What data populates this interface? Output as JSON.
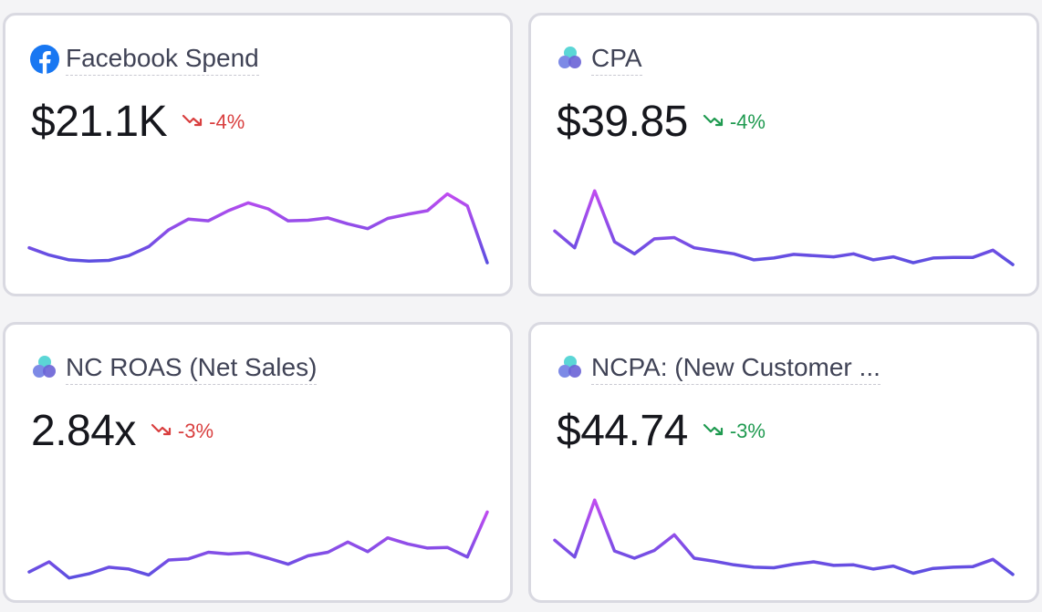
{
  "cards": [
    {
      "title": "Facebook Spend",
      "icon": "facebook-icon",
      "value": "$21.1K",
      "delta": "-4%",
      "delta_status": "negative",
      "delta_color": "#d93f3f",
      "sparkline": [
        0.3,
        0.18,
        0.1,
        0.08,
        0.09,
        0.17,
        0.32,
        0.6,
        0.78,
        0.75,
        0.92,
        1.05,
        0.95,
        0.75,
        0.76,
        0.8,
        0.7,
        0.62,
        0.79,
        0.86,
        0.92,
        1.2,
        1.0,
        0.05
      ]
    },
    {
      "title": "CPA",
      "icon": "multi-circle-icon",
      "value": "$39.85",
      "delta": "-4%",
      "delta_status": "positive",
      "delta_color": "#1f9a50",
      "sparkline": [
        0.58,
        0.3,
        1.25,
        0.4,
        0.2,
        0.45,
        0.47,
        0.3,
        0.25,
        0.2,
        0.1,
        0.13,
        0.19,
        0.17,
        0.15,
        0.2,
        0.1,
        0.15,
        0.05,
        0.13,
        0.14,
        0.14,
        0.26,
        0.02
      ]
    },
    {
      "title": "NC ROAS (Net Sales)",
      "icon": "multi-circle-icon",
      "value": "2.84x",
      "delta": "-3%",
      "delta_status": "negative",
      "delta_color": "#d93f3f",
      "sparkline": [
        0.05,
        0.22,
        -0.05,
        0.02,
        0.13,
        0.1,
        0.0,
        0.25,
        0.27,
        0.38,
        0.35,
        0.37,
        0.28,
        0.18,
        0.32,
        0.38,
        0.55,
        0.39,
        0.62,
        0.52,
        0.45,
        0.46,
        0.3,
        1.05
      ]
    },
    {
      "title": "NCPA: (New Customer ...",
      "icon": "multi-circle-icon",
      "value": "$44.74",
      "delta": "-3%",
      "delta_status": "positive",
      "delta_color": "#1f9a50",
      "sparkline": [
        0.58,
        0.3,
        1.25,
        0.4,
        0.28,
        0.41,
        0.67,
        0.28,
        0.23,
        0.17,
        0.13,
        0.12,
        0.18,
        0.22,
        0.16,
        0.17,
        0.1,
        0.15,
        0.03,
        0.11,
        0.13,
        0.14,
        0.26,
        0.01
      ]
    }
  ],
  "colors": {
    "card_border": "#d9d9e1",
    "spark_low": "#5b4fe0",
    "spark_high": "#c04cf0",
    "facebook_blue": "#1877f2"
  }
}
